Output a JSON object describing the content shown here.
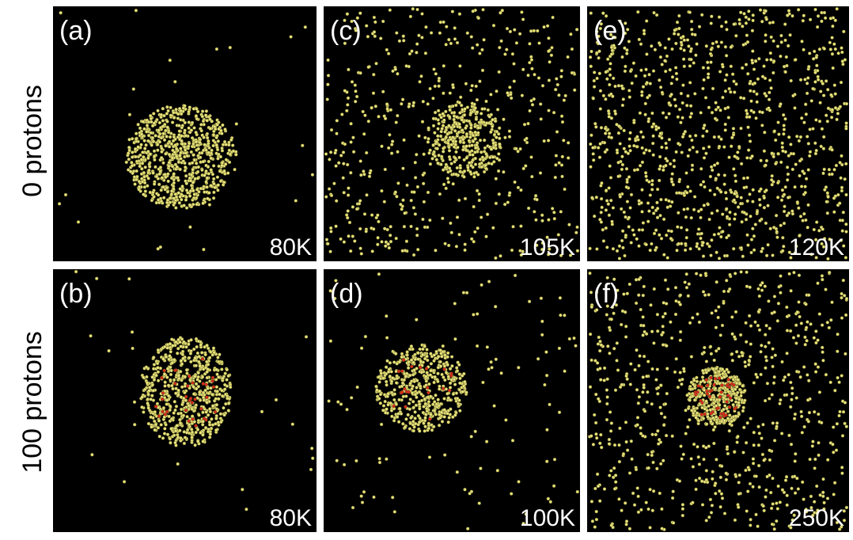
{
  "rows": [
    {
      "label": "0 protons"
    },
    {
      "label": "100 protons"
    }
  ],
  "panels": [
    {
      "label": "(a)",
      "temperature": "80K"
    },
    {
      "label": "(c)",
      "temperature": "105K"
    },
    {
      "label": "(e)",
      "temperature": "120K"
    },
    {
      "label": "(b)",
      "temperature": "80K"
    },
    {
      "label": "(d)",
      "temperature": "100K"
    },
    {
      "label": "(f)",
      "temperature": "250K"
    }
  ]
}
